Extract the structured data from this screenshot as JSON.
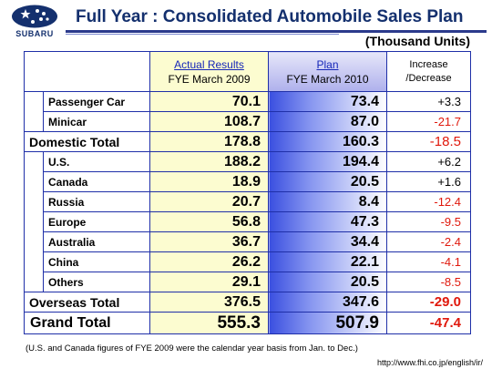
{
  "brand": {
    "name": "SUBARU",
    "primary_color": "#14306e",
    "table_border": "#1f2fa8",
    "negative_color": "#e0180c"
  },
  "title": "Full Year : Consolidated Automobile Sales Plan",
  "units": "(Thousand Units)",
  "table": {
    "headers": {
      "actual_line1": "Actual Results",
      "actual_line2": "FYE March 2009",
      "plan_line1": "Plan",
      "plan_line2": "FYE March 2010",
      "inc_line1": "Increase",
      "inc_line2": "/Decrease"
    },
    "domestic": [
      {
        "label": "Passenger Car",
        "actual": "70.1",
        "plan": "73.4",
        "change": "+3.3"
      },
      {
        "label": "Minicar",
        "actual": "108.7",
        "plan": "87.0",
        "change": "-21.7"
      }
    ],
    "domestic_total": {
      "label": "Domestic Total",
      "actual": "178.8",
      "plan": "160.3",
      "change": "-18.5"
    },
    "overseas": [
      {
        "label": "U.S.",
        "actual": "188.2",
        "plan": "194.4",
        "change": "+6.2"
      },
      {
        "label": "Canada",
        "actual": "18.9",
        "plan": "20.5",
        "change": "+1.6"
      },
      {
        "label": "Russia",
        "actual": "20.7",
        "plan": "8.4",
        "change": "-12.4"
      },
      {
        "label": "Europe",
        "actual": "56.8",
        "plan": "47.3",
        "change": "-9.5"
      },
      {
        "label": "Australia",
        "actual": "36.7",
        "plan": "34.4",
        "change": "-2.4"
      },
      {
        "label": "China",
        "actual": "26.2",
        "plan": "22.1",
        "change": "-4.1"
      },
      {
        "label": "Others",
        "actual": "29.1",
        "plan": "20.5",
        "change": "-8.5"
      }
    ],
    "overseas_total": {
      "label": "Overseas Total",
      "actual": "376.5",
      "plan": "347.6",
      "change": "-29.0"
    },
    "grand_total": {
      "label": "Grand Total",
      "actual": "555.3",
      "plan": "507.9",
      "change": "-47.4"
    }
  },
  "footnote": "(U.S. and Canada figures of FYE 2009 were the calendar year basis from Jan. to Dec.)",
  "url": "http://www.fhi.co.jp/english/ir/"
}
